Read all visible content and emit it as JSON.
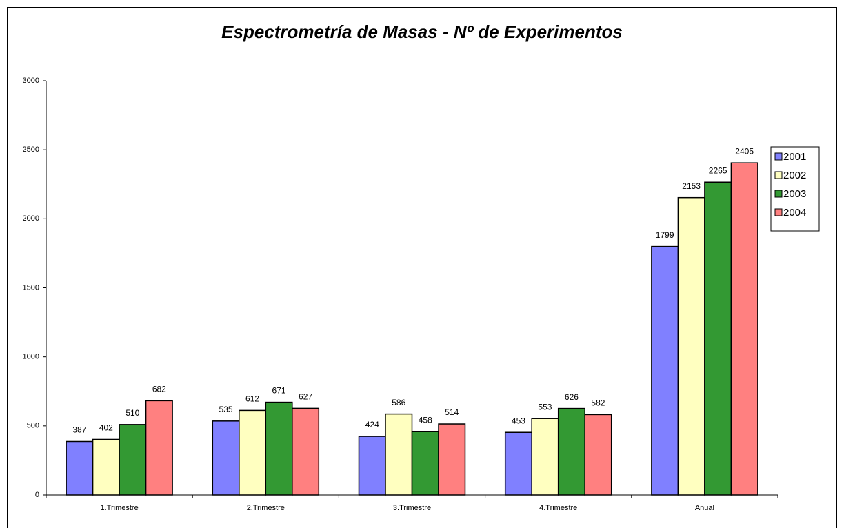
{
  "chart_data": {
    "type": "bar",
    "title": "Espectrometría de Masas - Nº de Experimentos",
    "categories": [
      "1.Trimestre",
      "2.Trimestre",
      "3.Trimestre",
      "4.Trimestre",
      "Anual"
    ],
    "series": [
      {
        "name": "2001",
        "color": "#8080ff",
        "values": [
          387,
          535,
          424,
          453,
          1799
        ]
      },
      {
        "name": "2002",
        "color": "#ffffc0",
        "values": [
          402,
          612,
          586,
          553,
          2153
        ]
      },
      {
        "name": "2003",
        "color": "#339933",
        "values": [
          510,
          671,
          458,
          626,
          2265
        ]
      },
      {
        "name": "2004",
        "color": "#ff8080",
        "values": [
          682,
          627,
          514,
          582,
          2405
        ]
      }
    ],
    "ylim": [
      0,
      3000
    ],
    "yticks": [
      0,
      500,
      1000,
      1500,
      2000,
      2500,
      3000
    ],
    "legend": "right",
    "grid": false
  }
}
